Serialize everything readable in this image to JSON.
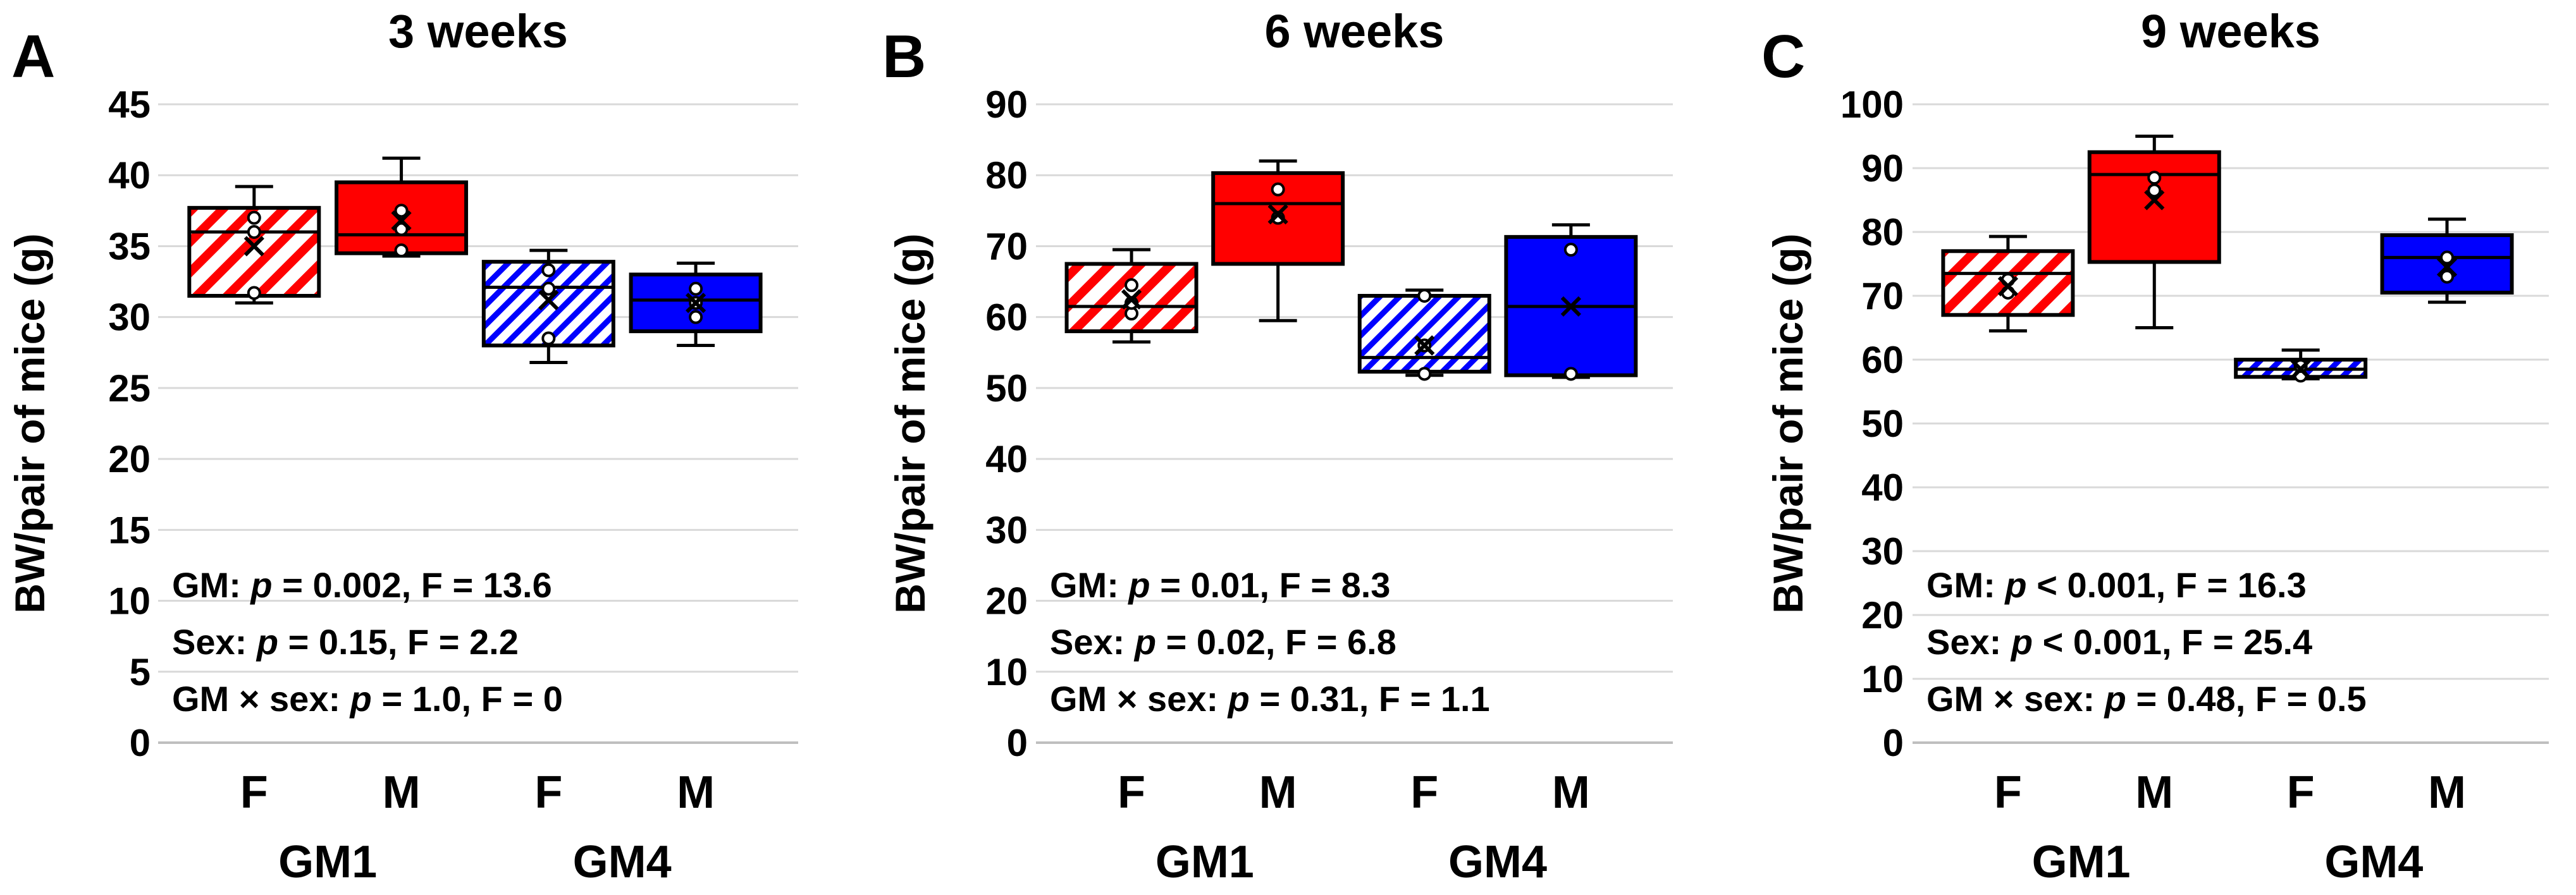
{
  "colors": {
    "gm1": "#ff0000",
    "gm4": "#0000ff",
    "grid": "#d9d9d9",
    "axis": "#bfbfbf"
  },
  "chart_data": [
    {
      "type": "box",
      "panel_letter": "A",
      "title": "3 weeks",
      "ylabel": "BW/pair of mice (g)",
      "ylim": [
        0,
        45
      ],
      "yticks": [
        0,
        5,
        10,
        15,
        20,
        25,
        30,
        35,
        40,
        45
      ],
      "categories": [
        "F",
        "M",
        "F",
        "M"
      ],
      "groups": [
        "GM1",
        "GM4"
      ],
      "boxes": [
        {
          "group": "GM1",
          "sex": "F",
          "pattern": "hatched",
          "min": 31.0,
          "q1": 31.5,
          "median": 36.0,
          "q3": 37.7,
          "max": 39.2,
          "mean": 35.0,
          "points": [
            31.7,
            36.0,
            37.0
          ]
        },
        {
          "group": "GM1",
          "sex": "M",
          "pattern": "solid",
          "min": 34.3,
          "q1": 34.5,
          "median": 35.8,
          "q3": 39.5,
          "max": 41.2,
          "mean": 36.8,
          "points": [
            34.7,
            36.2,
            37.5
          ]
        },
        {
          "group": "GM4",
          "sex": "F",
          "pattern": "hatched",
          "min": 26.8,
          "q1": 28.0,
          "median": 32.1,
          "q3": 33.9,
          "max": 34.7,
          "mean": 31.2,
          "points": [
            28.5,
            32.0,
            33.3
          ]
        },
        {
          "group": "GM4",
          "sex": "M",
          "pattern": "solid",
          "min": 28.0,
          "q1": 29.0,
          "median": 31.2,
          "q3": 33.0,
          "max": 33.8,
          "mean": 31.0,
          "points": [
            30.0,
            31.0,
            32.0
          ]
        }
      ],
      "stats": [
        {
          "pre": "GM: ",
          "p": "p",
          "post": " = 0.002, F = 13.6"
        },
        {
          "pre": "Sex: ",
          "p": "p",
          "post": " = 0.15, F = 2.2"
        },
        {
          "pre": "GM × sex: ",
          "p": "p",
          "post": " = 1.0, F = 0"
        }
      ]
    },
    {
      "type": "box",
      "panel_letter": "B",
      "title": "6 weeks",
      "ylabel": "BW/pair of mice (g)",
      "ylim": [
        0,
        90
      ],
      "yticks": [
        0,
        10,
        20,
        30,
        40,
        50,
        60,
        70,
        80,
        90
      ],
      "categories": [
        "F",
        "M",
        "F",
        "M"
      ],
      "groups": [
        "GM1",
        "GM4"
      ],
      "boxes": [
        {
          "group": "GM1",
          "sex": "F",
          "pattern": "hatched",
          "min": 56.5,
          "q1": 58.0,
          "median": 61.5,
          "q3": 67.5,
          "max": 69.5,
          "mean": 62.5,
          "points": [
            60.5,
            62.0,
            64.5
          ]
        },
        {
          "group": "GM1",
          "sex": "M",
          "pattern": "solid",
          "min": 59.5,
          "q1": 67.5,
          "median": 76.0,
          "q3": 80.3,
          "max": 82.0,
          "mean": 74.5,
          "points": [
            74.0,
            78.0
          ]
        },
        {
          "group": "GM4",
          "sex": "F",
          "pattern": "hatched",
          "min": 51.8,
          "q1": 52.3,
          "median": 54.3,
          "q3": 63.0,
          "max": 63.8,
          "mean": 56.0,
          "points": [
            52.0,
            56.0,
            63.0
          ]
        },
        {
          "group": "GM4",
          "sex": "M",
          "pattern": "solid",
          "min": 51.5,
          "q1": 51.8,
          "median": 61.5,
          "q3": 71.3,
          "max": 73.0,
          "mean": 61.5,
          "points": [
            52.0,
            69.5
          ]
        }
      ],
      "stats": [
        {
          "pre": "GM: ",
          "p": "p",
          "post": " = 0.01, F = 8.3"
        },
        {
          "pre": "Sex: ",
          "p": "p",
          "post": " = 0.02, F = 6.8"
        },
        {
          "pre": "GM × sex: ",
          "p": "p",
          "post": " = 0.31, F = 1.1"
        }
      ]
    },
    {
      "type": "box",
      "panel_letter": "C",
      "title": "9 weeks",
      "ylabel": "BW/pair of mice (g)",
      "ylim": [
        0,
        100
      ],
      "yticks": [
        0,
        10,
        20,
        30,
        40,
        50,
        60,
        70,
        80,
        90,
        100
      ],
      "categories": [
        "F",
        "M",
        "F",
        "M"
      ],
      "groups": [
        "GM1",
        "GM4"
      ],
      "boxes": [
        {
          "group": "GM1",
          "sex": "F",
          "pattern": "hatched",
          "min": 64.5,
          "q1": 67.0,
          "median": 73.5,
          "q3": 77.0,
          "max": 79.3,
          "mean": 71.5,
          "points": [
            70.5,
            72.5
          ]
        },
        {
          "group": "GM1",
          "sex": "M",
          "pattern": "solid",
          "min": 65.0,
          "q1": 75.3,
          "median": 89.0,
          "q3": 92.5,
          "max": 95.0,
          "mean": 85.0,
          "points": [
            86.5,
            88.5
          ]
        },
        {
          "group": "GM4",
          "sex": "F",
          "pattern": "hatched",
          "min": 57.0,
          "q1": 57.3,
          "median": 58.5,
          "q3": 60.0,
          "max": 61.5,
          "mean": 58.5,
          "points": [
            57.5,
            59.0
          ]
        },
        {
          "group": "GM4",
          "sex": "M",
          "pattern": "solid",
          "min": 69.0,
          "q1": 70.5,
          "median": 76.0,
          "q3": 79.5,
          "max": 82.0,
          "mean": 74.5,
          "points": [
            73.0,
            76.0
          ]
        }
      ],
      "stats": [
        {
          "pre": "GM: ",
          "p": "p",
          "post": " < 0.001, F = 16.3"
        },
        {
          "pre": "Sex: ",
          "p": "p",
          "post": " < 0.001, F = 25.4"
        },
        {
          "pre": "GM × sex: ",
          "p": "p",
          "post": " = 0.48, F = 0.5"
        }
      ]
    }
  ]
}
